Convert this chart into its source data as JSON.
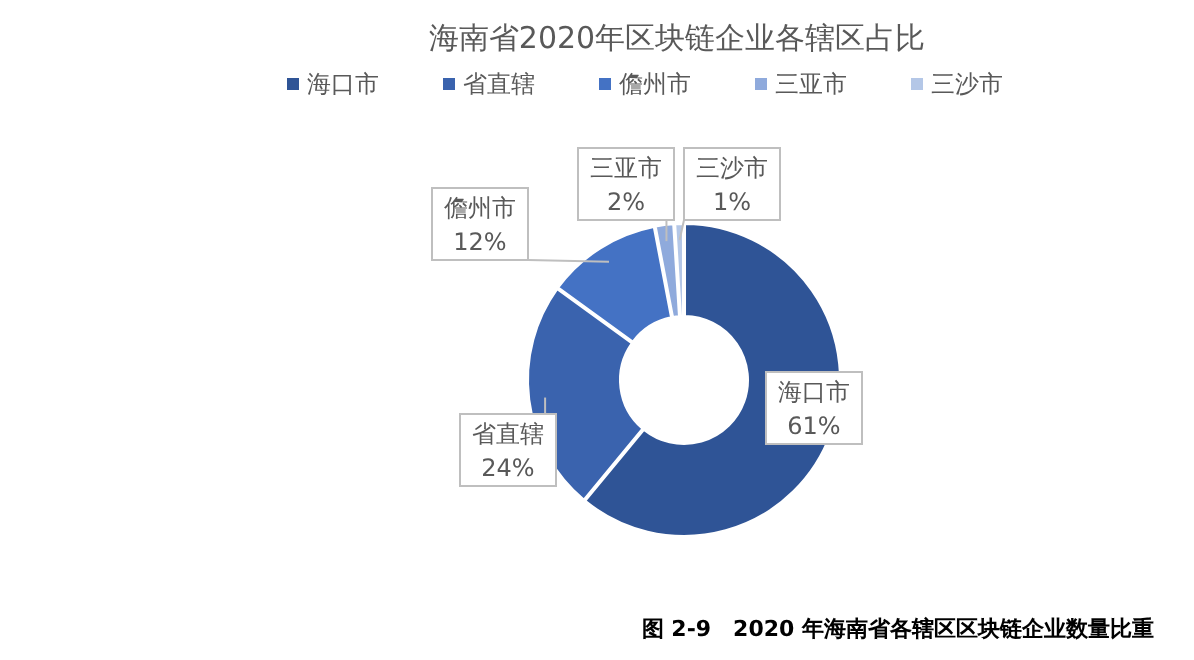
{
  "chart_data": {
    "type": "donut",
    "title": "海南省2020年区块链企业各辖区占比",
    "categories": [
      "海口市",
      "省直辖",
      "儋州市",
      "三亚市",
      "三沙市"
    ],
    "values": [
      61,
      24,
      12,
      2,
      1
    ],
    "value_labels": [
      "61%",
      "24%",
      "12%",
      "2%",
      "1%"
    ],
    "colors": [
      "#2f5496",
      "#3a63ae",
      "#4472c4",
      "#8faadc",
      "#b4c7e7"
    ],
    "legend": "top",
    "annotations": [
      "图 2-9　2020 年海南省各辖区区块链企业数量比重"
    ]
  }
}
